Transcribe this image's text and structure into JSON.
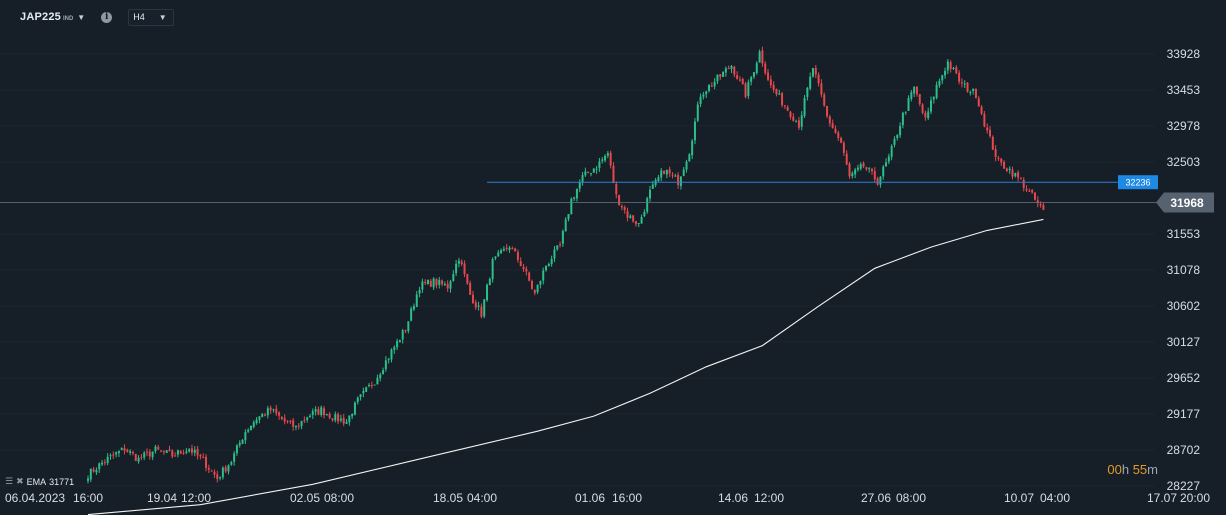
{
  "toolbar": {
    "symbol": "JAP225",
    "symbol_type": "IND",
    "info_icon": "info-icon",
    "timeframe": "H4"
  },
  "colors": {
    "background": "#161e27",
    "up": "#2bbf8a",
    "down": "#e5484d",
    "ema": "#f2f2f2",
    "hline": "#2f7fd6",
    "hline_badge": "#1e88e5",
    "price_badge": "#566270"
  },
  "countdown": {
    "h_val": "00",
    "h_unit": "h",
    "m_val": "55",
    "m_unit": "m"
  },
  "indicator": {
    "name": "EMA",
    "value": "31771"
  },
  "chart_data": {
    "type": "candlestick",
    "y_ticks": [
      33928,
      33453,
      32978,
      32503,
      31553,
      31078,
      30602,
      30127,
      29652,
      29177,
      28702,
      28227
    ],
    "y_range": [
      28110,
      34150
    ],
    "x_labels": [
      "06.04.2023",
      "16:00",
      "19.04",
      "12:00",
      "02.05",
      "08:00",
      "18.05",
      "04:00",
      "01.06",
      "16:00",
      "14.06",
      "12:00",
      "27.06",
      "08:00",
      "10.07",
      "04:00",
      "17.07",
      "20:00"
    ],
    "current_price": "31968",
    "current_price_value": 31968,
    "hline_label": "32236",
    "hline_value": 32236,
    "segments": [
      [
        0,
        28380
      ],
      [
        6,
        28560
      ],
      [
        13,
        28720
      ],
      [
        18,
        28580
      ],
      [
        24,
        28700
      ],
      [
        30,
        28630
      ],
      [
        36,
        28720
      ],
      [
        41,
        28560
      ],
      [
        46,
        28330
      ],
      [
        51,
        28560
      ],
      [
        56,
        28950
      ],
      [
        60,
        29120
      ],
      [
        65,
        29230
      ],
      [
        70,
        29080
      ],
      [
        74,
        29000
      ],
      [
        78,
        29150
      ],
      [
        83,
        29230
      ],
      [
        88,
        29120
      ],
      [
        92,
        29080
      ],
      [
        96,
        29350
      ],
      [
        102,
        29620
      ],
      [
        108,
        30000
      ],
      [
        113,
        30300
      ],
      [
        118,
        30870
      ],
      [
        123,
        30920
      ],
      [
        128,
        30860
      ],
      [
        132,
        31250
      ],
      [
        136,
        30750
      ],
      [
        140,
        30500
      ],
      [
        144,
        31180
      ],
      [
        150,
        31400
      ],
      [
        155,
        31100
      ],
      [
        159,
        30760
      ],
      [
        163,
        31140
      ],
      [
        168,
        31400
      ],
      [
        172,
        32000
      ],
      [
        176,
        32300
      ],
      [
        181,
        32450
      ],
      [
        185,
        32620
      ],
      [
        188,
        32050
      ],
      [
        192,
        31800
      ],
      [
        196,
        31680
      ],
      [
        200,
        32100
      ],
      [
        205,
        32400
      ],
      [
        210,
        32250
      ],
      [
        214,
        32650
      ],
      [
        218,
        33400
      ],
      [
        224,
        33600
      ],
      [
        229,
        33780
      ],
      [
        234,
        33400
      ],
      [
        239,
        33950
      ],
      [
        243,
        33500
      ],
      [
        248,
        33250
      ],
      [
        253,
        33000
      ],
      [
        258,
        33750
      ],
      [
        263,
        33100
      ],
      [
        268,
        32750
      ],
      [
        271,
        32300
      ],
      [
        276,
        32450
      ],
      [
        281,
        32250
      ],
      [
        285,
        32550
      ],
      [
        290,
        33120
      ],
      [
        294,
        33480
      ],
      [
        298,
        33050
      ],
      [
        302,
        33500
      ],
      [
        306,
        33820
      ],
      [
        311,
        33520
      ],
      [
        316,
        33400
      ],
      [
        320,
        32900
      ],
      [
        324,
        32500
      ],
      [
        328,
        32400
      ],
      [
        332,
        32250
      ],
      [
        335,
        32100
      ],
      [
        340,
        31850
      ]
    ],
    "ema_path": [
      [
        0,
        27850
      ],
      [
        40,
        27980
      ],
      [
        80,
        28250
      ],
      [
        120,
        28600
      ],
      [
        160,
        28950
      ],
      [
        180,
        29150
      ],
      [
        200,
        29450
      ],
      [
        220,
        29800
      ],
      [
        240,
        30080
      ],
      [
        260,
        30600
      ],
      [
        280,
        31100
      ],
      [
        300,
        31380
      ],
      [
        320,
        31600
      ],
      [
        340,
        31745
      ]
    ],
    "candle_count": 341
  }
}
